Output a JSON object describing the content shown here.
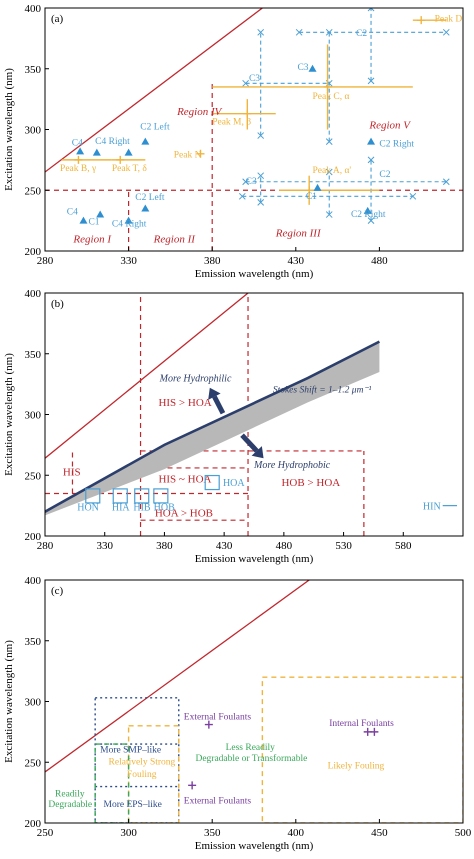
{
  "chart_data": [
    {
      "type": "scatter",
      "panel_label": "(a)",
      "xlabel": "Emission wavelength (nm)",
      "ylabel": "Excitation wavelength (nm)",
      "xlim": [
        280,
        530
      ],
      "ylim": [
        200,
        400
      ],
      "xticks": [
        280,
        330,
        380,
        430,
        480
      ],
      "yticks": [
        200,
        250,
        300,
        350,
        400
      ],
      "colors": {
        "boundary": "#c0272d",
        "blue": "#4a9fd4",
        "orange": "#f0b43c",
        "marker": "#2e8fd0"
      },
      "boundary_lines": [
        {
          "kind": "solid",
          "points": [
            [
              280,
              265
            ],
            [
              410,
              400
            ]
          ]
        },
        {
          "kind": "dashed",
          "points": [
            [
              280,
              250
            ],
            [
              530,
              250
            ]
          ]
        },
        {
          "kind": "dashed",
          "points": [
            [
              330,
              200
            ],
            [
              330,
              250
            ]
          ]
        },
        {
          "kind": "dashed",
          "points": [
            [
              380,
              200
            ],
            [
              380,
              338
            ]
          ]
        }
      ],
      "regions": [
        {
          "label": "Region I",
          "x": 297,
          "y": 207
        },
        {
          "label": "Region II",
          "x": 345,
          "y": 207
        },
        {
          "label": "Region III",
          "x": 418,
          "y": 212
        },
        {
          "label": "Region IV",
          "x": 359,
          "y": 312
        },
        {
          "label": "Region V",
          "x": 474,
          "y": 301
        }
      ],
      "blue_crosses": [
        {
          "type": "h",
          "x1": 400,
          "x2": 450,
          "y": 338,
          "cap": "x"
        },
        {
          "type": "v",
          "x": 409,
          "y1": 295,
          "y2": 380
        },
        {
          "type": "v",
          "x": 450,
          "y1": 290,
          "y2": 380
        },
        {
          "type": "h",
          "x1": 432,
          "x2": 520,
          "y": 380
        },
        {
          "type": "v",
          "x": 475,
          "y1": 340,
          "y2": 400
        },
        {
          "type": "h",
          "x1": 400,
          "x2": 520,
          "y": 257
        },
        {
          "type": "h",
          "x1": 398,
          "x2": 500,
          "y": 245
        },
        {
          "type": "v",
          "x": 409,
          "y1": 240,
          "y2": 262
        },
        {
          "type": "v",
          "x": 450,
          "y1": 230,
          "y2": 265
        },
        {
          "type": "v",
          "x": 475,
          "y1": 225,
          "y2": 275
        }
      ],
      "orange_crosses": [
        {
          "x": 505,
          "y": 390,
          "xerr": [
            500,
            520
          ],
          "yerr": null
        },
        {
          "x": 449,
          "y": 335,
          "xerr": [
            380,
            500
          ],
          "yerr": [
            300,
            370
          ]
        },
        {
          "x": 401,
          "y": 313,
          "xerr": [
            380,
            418
          ],
          "yerr": [
            300,
            325
          ]
        },
        {
          "x": 373,
          "y": 280,
          "xerr": null,
          "yerr": null
        },
        {
          "x": 300,
          "y": 275,
          "xerr": [
            290,
            320
          ],
          "yerr": null
        },
        {
          "x": 325,
          "y": 275,
          "xerr": [
            320,
            340
          ],
          "yerr": null
        },
        {
          "x": 438,
          "y": 250,
          "xerr": [
            420,
            480
          ],
          "yerr": [
            238,
            262
          ]
        }
      ],
      "triangles": [
        {
          "x": 301,
          "y": 282
        },
        {
          "x": 311,
          "y": 281
        },
        {
          "x": 330,
          "y": 281
        },
        {
          "x": 340,
          "y": 290
        },
        {
          "x": 440,
          "y": 350
        },
        {
          "x": 475,
          "y": 290
        },
        {
          "x": 303,
          "y": 225
        },
        {
          "x": 313,
          "y": 230
        },
        {
          "x": 330,
          "y": 225
        },
        {
          "x": 340,
          "y": 235
        },
        {
          "x": 443,
          "y": 252
        },
        {
          "x": 473,
          "y": 233
        }
      ],
      "annotations": [
        {
          "text": "C4",
          "x": 296,
          "y": 287,
          "color": "blue"
        },
        {
          "text": "C4 Right",
          "x": 310,
          "y": 288,
          "color": "blue"
        },
        {
          "text": "C2 Left",
          "x": 337,
          "y": 300,
          "color": "blue"
        },
        {
          "text": "Peak B, γ",
          "x": 289,
          "y": 266,
          "color": "orange"
        },
        {
          "text": "Peak T, δ",
          "x": 320,
          "y": 266,
          "color": "orange"
        },
        {
          "text": "Peak N",
          "x": 357,
          "y": 277,
          "color": "orange"
        },
        {
          "text": "Peak M, β",
          "x": 380,
          "y": 304,
          "color": "orange"
        },
        {
          "text": "Peak C, α",
          "x": 440,
          "y": 325,
          "color": "orange"
        },
        {
          "text": "Peak D",
          "x": 513,
          "y": 389,
          "color": "orange"
        },
        {
          "text": "C3",
          "x": 431,
          "y": 349,
          "color": "blue"
        },
        {
          "text": "C3",
          "x": 402,
          "y": 340,
          "color": "blue"
        },
        {
          "text": "C2",
          "x": 466,
          "y": 377,
          "color": "blue"
        },
        {
          "text": "C2 Right",
          "x": 480,
          "y": 286,
          "color": "blue"
        },
        {
          "text": "Peak A, α'",
          "x": 440,
          "y": 264,
          "color": "orange"
        },
        {
          "text": "C2",
          "x": 480,
          "y": 261,
          "color": "blue"
        },
        {
          "text": "C3",
          "x": 400,
          "y": 255,
          "color": "blue"
        },
        {
          "text": "C1",
          "x": 436,
          "y": 243,
          "color": "blue"
        },
        {
          "text": "C2 Right",
          "x": 463,
          "y": 228,
          "color": "blue"
        },
        {
          "text": "C4",
          "x": 293,
          "y": 230,
          "color": "blue"
        },
        {
          "text": "C1",
          "x": 306,
          "y": 222,
          "color": "blue"
        },
        {
          "text": "C4 Right",
          "x": 320,
          "y": 220,
          "color": "blue"
        },
        {
          "text": "C2 Left",
          "x": 334,
          "y": 242,
          "color": "blue"
        }
      ]
    },
    {
      "type": "diagram",
      "panel_label": "(b)",
      "xlabel": "Emission wavelength (nm)",
      "ylabel": "Excitation wavelength (nm)",
      "xlim": [
        280,
        630
      ],
      "ylim": [
        200,
        400
      ],
      "xticks": [
        280,
        330,
        380,
        430,
        480,
        530,
        580
      ],
      "yticks": [
        200,
        250,
        300,
        350,
        400
      ],
      "colors": {
        "boundary": "#c0272d",
        "navy": "#2c3e6b",
        "band": "#b8b8b8",
        "label_red": "#c0272d",
        "box": "#4a9fd4"
      },
      "boundary_lines": [
        {
          "kind": "solid",
          "points": [
            [
              280,
              264
            ],
            [
              450,
              400
            ]
          ]
        },
        {
          "kind": "dashed",
          "points": [
            [
              303,
              235
            ],
            [
              303,
              269
            ]
          ]
        },
        {
          "kind": "dashed",
          "points": [
            [
              280,
              235
            ],
            [
              450,
              235
            ]
          ]
        },
        {
          "kind": "dashed",
          "points": [
            [
              360,
              200
            ],
            [
              360,
              400
            ]
          ]
        },
        {
          "kind": "dashed",
          "points": [
            [
              360,
              256
            ],
            [
              450,
              256
            ]
          ]
        },
        {
          "kind": "dashed",
          "points": [
            [
              450,
              200
            ],
            [
              450,
              400
            ]
          ]
        },
        {
          "kind": "dashed",
          "points": [
            [
              360,
              270
            ],
            [
              547,
              270
            ]
          ]
        },
        {
          "kind": "dashed",
          "points": [
            [
              547,
              200
            ],
            [
              547,
              270
            ]
          ]
        },
        {
          "kind": "dashed",
          "points": [
            [
              360,
              213
            ],
            [
              450,
              213
            ]
          ]
        }
      ],
      "stokes_band": {
        "upper": [
          [
            280,
            220
          ],
          [
            380,
            275
          ],
          [
            500,
            330
          ],
          [
            560,
            360
          ]
        ],
        "lower": [
          [
            280,
            217
          ],
          [
            380,
            255
          ],
          [
            500,
            310
          ],
          [
            560,
            335
          ]
        ]
      },
      "stokes_label": "Stokes Shift = 1–1.2 μm⁻¹",
      "arrows": [
        {
          "label": "More Hydrophilic",
          "from": [
            429,
            301
          ],
          "to": [
            418,
            322
          ],
          "text_x": 376,
          "text_y": 327
        },
        {
          "label": "More Hydrophobic",
          "from": [
            445,
            283
          ],
          "to": [
            463,
            264
          ],
          "text_x": 455,
          "text_y": 256
        }
      ],
      "region_labels": [
        {
          "text": "HIS",
          "x": 295,
          "y": 250
        },
        {
          "text": "HIS > HOA",
          "x": 375,
          "y": 307
        },
        {
          "text": "HIS ~ HOA",
          "x": 375,
          "y": 244
        },
        {
          "text": "HOB > HOA",
          "x": 478,
          "y": 241
        },
        {
          "text": "HOA > HOB",
          "x": 372,
          "y": 216
        }
      ],
      "boxes": [
        {
          "label": "HON",
          "x": 320,
          "y": 233,
          "label_x": 307,
          "label_y": 221
        },
        {
          "label": "HIA",
          "x": 343,
          "y": 233,
          "label_x": 336,
          "label_y": 221
        },
        {
          "label": "HIB",
          "x": 361,
          "y": 233,
          "label_x": 354,
          "label_y": 221
        },
        {
          "label": "HOB",
          "x": 377,
          "y": 233,
          "label_x": 371,
          "label_y": 221
        },
        {
          "label": "HOA",
          "x": 420,
          "y": 244,
          "label_x": 429,
          "label_y": 241
        }
      ],
      "hin": {
        "label": "HIN",
        "x1": 613,
        "x2": 625,
        "y": 225
      }
    },
    {
      "type": "diagram",
      "panel_label": "(c)",
      "xlabel": "Emission wavelength (nm)",
      "ylabel": "Excitation wavelength (nm)",
      "xlim": [
        250,
        500
      ],
      "ylim": [
        200,
        400
      ],
      "xticks": [
        250,
        300,
        350,
        400,
        450,
        500
      ],
      "yticks": [
        200,
        250,
        300,
        350,
        400
      ],
      "colors": {
        "boundary": "#c0272d",
        "navy": "#2c4c8c",
        "orange": "#f0b43c",
        "green": "#3aa85a",
        "purple": "#7a3fa0"
      },
      "boundary_lines": [
        {
          "kind": "solid",
          "points": [
            [
              250,
              242
            ],
            [
              408,
              400
            ]
          ]
        }
      ],
      "rects": [
        {
          "x1": 280,
          "x2": 330,
          "y1": 200,
          "y2": 303,
          "color": "navy",
          "dash": "dot"
        },
        {
          "x1": 280,
          "x2": 330,
          "y1": 230,
          "y2": 230,
          "color": "navy",
          "dash": "dot"
        },
        {
          "x1": 280,
          "x2": 330,
          "y1": 265,
          "y2": 265,
          "color": "navy",
          "dash": "dot"
        },
        {
          "x1": 300,
          "x2": 330,
          "y1": 200,
          "y2": 280,
          "color": "orange",
          "dash": "dash"
        },
        {
          "x1": 280,
          "x2": 300,
          "y1": 200,
          "y2": 265,
          "color": "green",
          "dash": "dash"
        },
        {
          "x1": 380,
          "x2": 500,
          "y1": 200,
          "y2": 320,
          "color": "orange",
          "dash": "dash"
        }
      ],
      "markers": [
        {
          "x": 348,
          "y": 281,
          "color": "purple"
        },
        {
          "x": 338,
          "y": 231,
          "color": "purple"
        },
        {
          "x": 443,
          "y": 275,
          "color": "purple"
        },
        {
          "x": 447,
          "y": 275,
          "color": "purple"
        }
      ],
      "labels": [
        {
          "text": "External Foulants",
          "x": 333,
          "y": 285,
          "color": "purple"
        },
        {
          "text": "Internal Foulants",
          "x": 420,
          "y": 280,
          "color": "purple"
        },
        {
          "text": "More SMP–like",
          "x": 283,
          "y": 258,
          "color": "navy"
        },
        {
          "text": "Less Readily",
          "x": 358,
          "y": 260,
          "color": "green"
        },
        {
          "text": "Degradable or Transformable",
          "x": 340,
          "y": 251,
          "color": "green"
        },
        {
          "text": "Relatively Strong",
          "x": 288,
          "y": 248,
          "color": "orange"
        },
        {
          "text": "Fouling",
          "x": 299,
          "y": 238,
          "color": "orange"
        },
        {
          "text": "Likely Fouling",
          "x": 419,
          "y": 245,
          "color": "orange"
        },
        {
          "text": "Readily",
          "x": 256,
          "y": 222,
          "color": "green"
        },
        {
          "text": "Degradable",
          "x": 252,
          "y": 213,
          "color": "green"
        },
        {
          "text": "More EPS–like",
          "x": 285,
          "y": 213,
          "color": "navy"
        },
        {
          "text": "External Foulants",
          "x": 333,
          "y": 216,
          "color": "purple"
        }
      ]
    }
  ]
}
